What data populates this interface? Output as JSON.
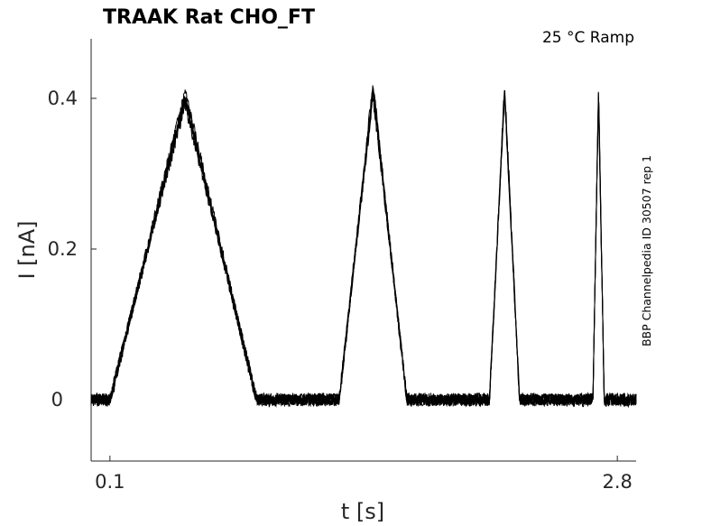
{
  "chart_data": {
    "type": "line",
    "title": "TRAAK  Rat  CHO_FT",
    "condition": "25 °C  Ramp",
    "side_note": "BBP Channelpedia ID 30507 rep 1",
    "xlabel": "t [s]",
    "ylabel": "I [nA]",
    "xlim": [
      0.0,
      2.9
    ],
    "ylim": [
      -0.08,
      0.48
    ],
    "x_ticks": [
      0.1,
      2.8
    ],
    "x_tick_labels": [
      "0.1",
      "2.8"
    ],
    "y_ticks": [
      0,
      0.2,
      0.4
    ],
    "y_tick_labels": [
      "0",
      "0.2",
      "0.4"
    ],
    "grid": false,
    "line_color": "#000000",
    "baseline": 0.0,
    "noise_amplitude": 0.008,
    "ramps": [
      {
        "start": 0.1,
        "peak_t": 0.5,
        "end": 0.88,
        "peak": 0.4
      },
      {
        "start": 1.32,
        "peak_t": 1.5,
        "end": 1.68,
        "peak": 0.41
      },
      {
        "start": 2.12,
        "peak_t": 2.2,
        "end": 2.28,
        "peak": 0.41
      },
      {
        "start": 2.67,
        "peak_t": 2.7,
        "end": 2.73,
        "peak": 0.41
      }
    ],
    "series": [
      {
        "values_offset": 0.0,
        "peak_scale": 1.0,
        "seed": 1
      },
      {
        "values_offset": 0.004,
        "peak_scale": 0.97,
        "seed": 2
      },
      {
        "values_offset": -0.004,
        "peak_scale": 1.02,
        "seed": 3
      },
      {
        "values_offset": 0.002,
        "peak_scale": 0.99,
        "seed": 4
      },
      {
        "values_offset": -0.002,
        "peak_scale": 1.03,
        "seed": 5
      }
    ]
  }
}
